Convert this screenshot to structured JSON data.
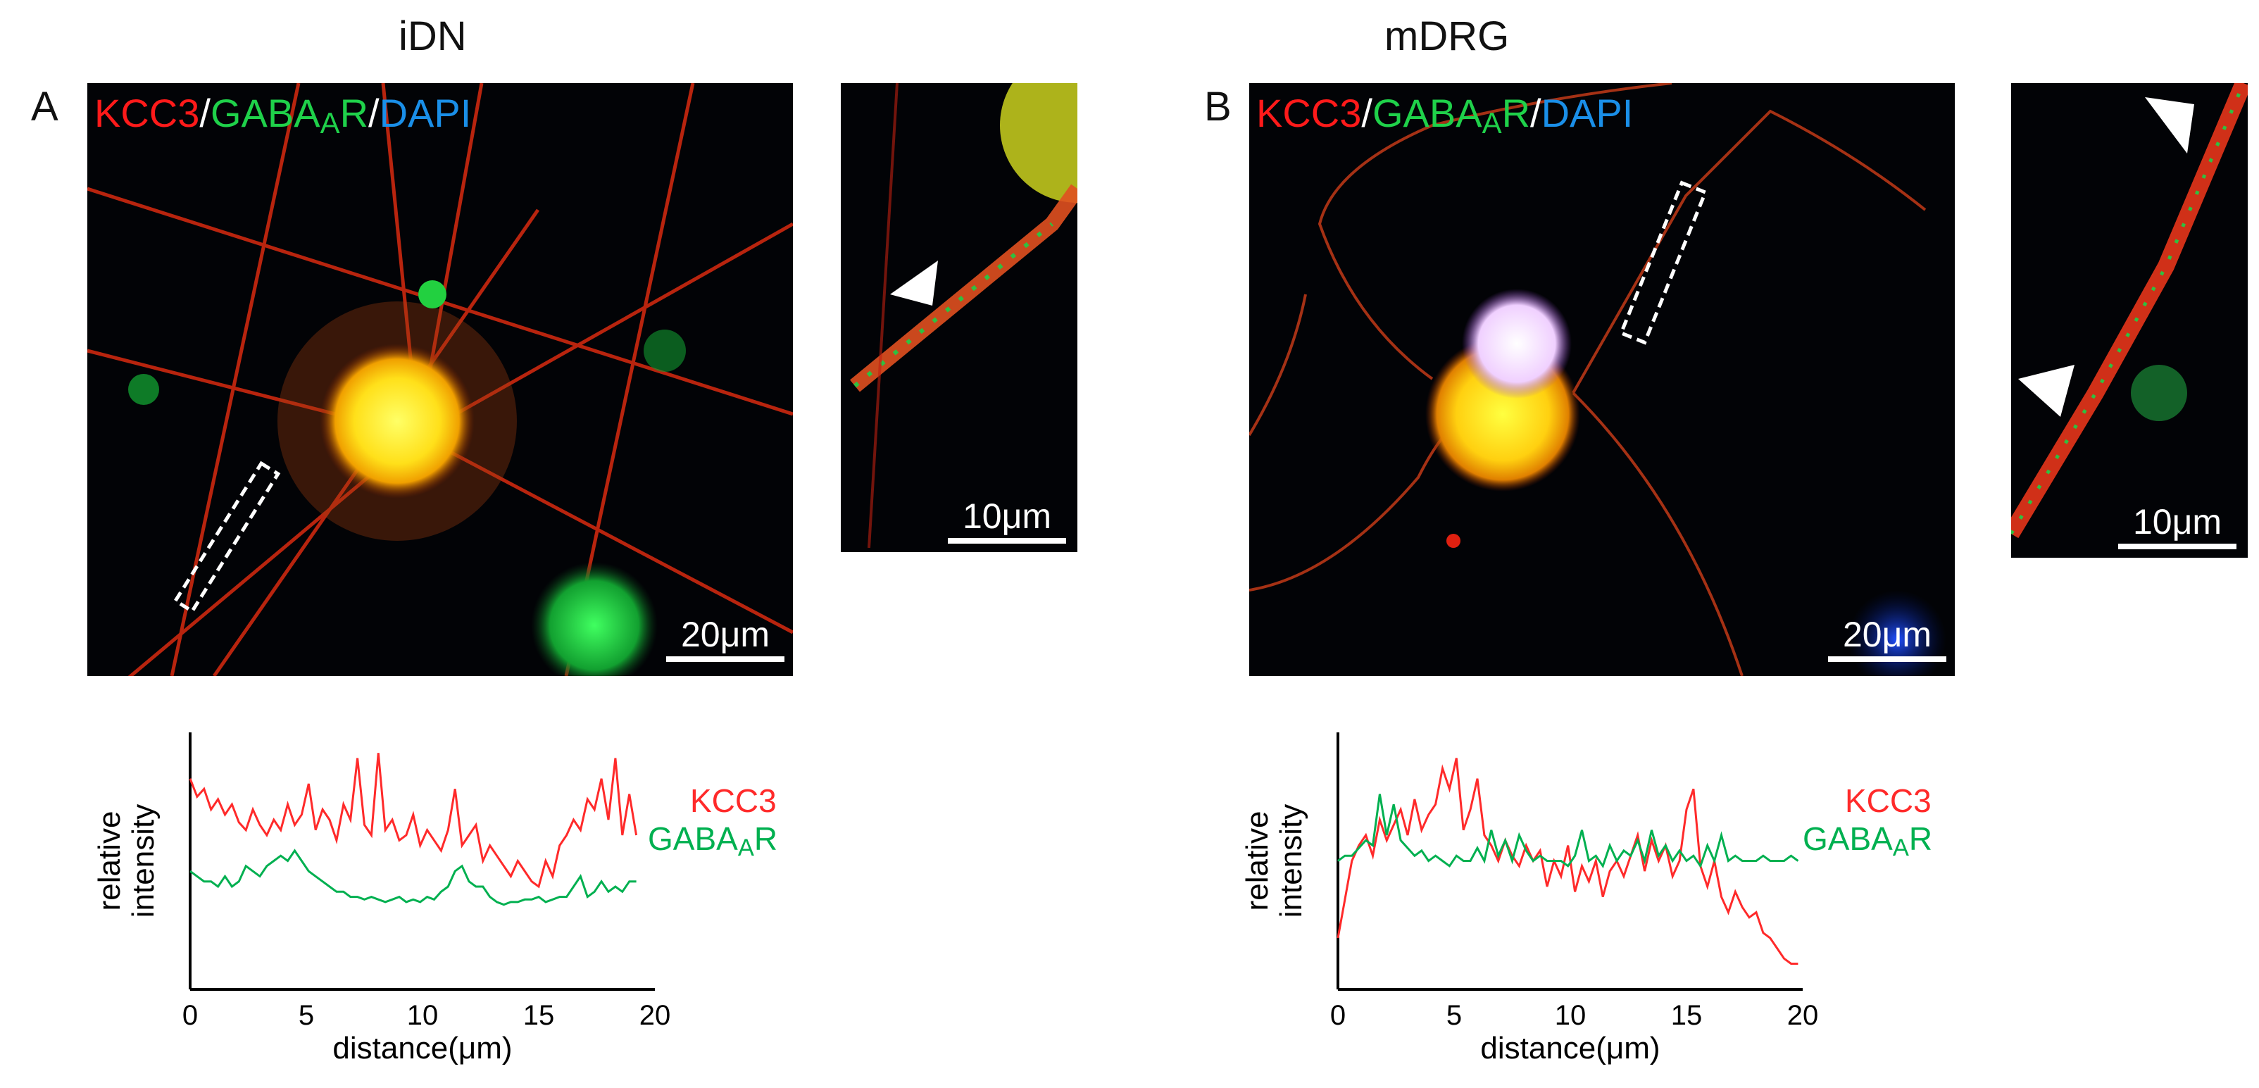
{
  "panels": [
    {
      "letter": "A",
      "title": "iDN",
      "stain": {
        "kcc3": "KCC3",
        "sep1": "/",
        "gaba": "GABA",
        "gaba_sub": "A",
        "gaba_end": "R",
        "sep2": "/",
        "dapi": "DAPI"
      },
      "main_scale": "20μm",
      "inset_scale": "10μm"
    },
    {
      "letter": "B",
      "title": "mDRG",
      "stain": {
        "kcc3": "KCC3",
        "sep1": "/",
        "gaba": "GABA",
        "gaba_sub": "A",
        "gaba_end": "R",
        "sep2": "/",
        "dapi": "DAPI"
      },
      "main_scale": "20μm",
      "inset_scale": "10μm"
    }
  ],
  "legend": {
    "kcc3": "KCC3",
    "gaba": "GABA",
    "gaba_sub": "A",
    "gaba_end": "R"
  },
  "colors": {
    "kcc3": "#ff2a2a",
    "gaba": "#00b050"
  },
  "chart_data": [
    {
      "type": "line",
      "xlabel": "distance(μm)",
      "ylabel": "relative intensity",
      "xlim": [
        0,
        20
      ],
      "xticks": [
        0,
        5,
        10,
        15,
        20
      ],
      "ylim": [
        0,
        1
      ],
      "series": [
        {
          "name": "KCC3",
          "color": "#ff2a2a",
          "x": [
            0,
            0.3,
            0.6,
            0.9,
            1.2,
            1.5,
            1.8,
            2.1,
            2.4,
            2.7,
            3,
            3.3,
            3.6,
            3.9,
            4.2,
            4.5,
            4.8,
            5.1,
            5.4,
            5.7,
            6,
            6.3,
            6.6,
            6.9,
            7.2,
            7.5,
            7.8,
            8.1,
            8.4,
            8.7,
            9,
            9.3,
            9.6,
            9.9,
            10.2,
            10.5,
            10.8,
            11.1,
            11.4,
            11.7,
            12,
            12.3,
            12.6,
            12.9,
            13.2,
            13.5,
            13.8,
            14.1,
            14.4,
            14.7,
            15,
            15.3,
            15.6,
            15.9,
            16.2,
            16.5,
            16.8,
            17.1,
            17.4,
            17.7,
            18,
            18.3,
            18.6,
            18.9,
            19.2
          ],
          "y": [
            0.82,
            0.75,
            0.78,
            0.7,
            0.74,
            0.68,
            0.72,
            0.65,
            0.62,
            0.7,
            0.64,
            0.6,
            0.66,
            0.62,
            0.72,
            0.64,
            0.68,
            0.8,
            0.62,
            0.7,
            0.66,
            0.58,
            0.72,
            0.66,
            0.9,
            0.64,
            0.6,
            0.92,
            0.62,
            0.66,
            0.58,
            0.6,
            0.68,
            0.56,
            0.62,
            0.58,
            0.54,
            0.62,
            0.78,
            0.56,
            0.6,
            0.64,
            0.5,
            0.56,
            0.52,
            0.48,
            0.44,
            0.5,
            0.46,
            0.42,
            0.4,
            0.5,
            0.44,
            0.56,
            0.6,
            0.66,
            0.62,
            0.74,
            0.7,
            0.82,
            0.66,
            0.9,
            0.6,
            0.76,
            0.6
          ]
        },
        {
          "name": "GABAAR",
          "color": "#00b050",
          "x": [
            0,
            0.3,
            0.6,
            0.9,
            1.2,
            1.5,
            1.8,
            2.1,
            2.4,
            2.7,
            3,
            3.3,
            3.6,
            3.9,
            4.2,
            4.5,
            4.8,
            5.1,
            5.4,
            5.7,
            6,
            6.3,
            6.6,
            6.9,
            7.2,
            7.5,
            7.8,
            8.1,
            8.4,
            8.7,
            9,
            9.3,
            9.6,
            9.9,
            10.2,
            10.5,
            10.8,
            11.1,
            11.4,
            11.7,
            12,
            12.3,
            12.6,
            12.9,
            13.2,
            13.5,
            13.8,
            14.1,
            14.4,
            14.7,
            15,
            15.3,
            15.6,
            15.9,
            16.2,
            16.5,
            16.8,
            17.1,
            17.4,
            17.7,
            18,
            18.3,
            18.6,
            18.9,
            19.2
          ],
          "y": [
            0.46,
            0.44,
            0.42,
            0.42,
            0.4,
            0.44,
            0.4,
            0.42,
            0.48,
            0.46,
            0.44,
            0.48,
            0.5,
            0.52,
            0.5,
            0.54,
            0.5,
            0.46,
            0.44,
            0.42,
            0.4,
            0.38,
            0.38,
            0.36,
            0.36,
            0.35,
            0.36,
            0.35,
            0.34,
            0.35,
            0.36,
            0.34,
            0.35,
            0.34,
            0.36,
            0.35,
            0.38,
            0.4,
            0.46,
            0.48,
            0.42,
            0.4,
            0.4,
            0.36,
            0.34,
            0.33,
            0.34,
            0.34,
            0.35,
            0.35,
            0.36,
            0.34,
            0.35,
            0.36,
            0.36,
            0.4,
            0.44,
            0.36,
            0.38,
            0.42,
            0.38,
            0.4,
            0.38,
            0.42,
            0.42
          ]
        }
      ]
    },
    {
      "type": "line",
      "xlabel": "distance(μm)",
      "ylabel": "relative intensity",
      "xlim": [
        0,
        20
      ],
      "xticks": [
        0,
        5,
        10,
        15,
        20
      ],
      "ylim": [
        0,
        1
      ],
      "series": [
        {
          "name": "KCC3",
          "color": "#ff2a2a",
          "x": [
            0,
            0.3,
            0.6,
            0.9,
            1.2,
            1.5,
            1.8,
            2.1,
            2.4,
            2.7,
            3,
            3.3,
            3.6,
            3.9,
            4.2,
            4.5,
            4.8,
            5.1,
            5.4,
            5.7,
            6,
            6.3,
            6.6,
            6.9,
            7.2,
            7.5,
            7.8,
            8.1,
            8.4,
            8.7,
            9,
            9.3,
            9.6,
            9.9,
            10.2,
            10.5,
            10.8,
            11.1,
            11.4,
            11.7,
            12,
            12.3,
            12.6,
            12.9,
            13.2,
            13.5,
            13.8,
            14.1,
            14.4,
            14.7,
            15,
            15.3,
            15.6,
            15.9,
            16.2,
            16.5,
            16.8,
            17.1,
            17.4,
            17.7,
            18,
            18.3,
            18.6,
            18.9,
            19.2,
            19.5,
            19.8
          ],
          "y": [
            0.2,
            0.35,
            0.5,
            0.56,
            0.6,
            0.52,
            0.66,
            0.58,
            0.64,
            0.7,
            0.6,
            0.74,
            0.62,
            0.68,
            0.72,
            0.86,
            0.78,
            0.9,
            0.62,
            0.7,
            0.82,
            0.6,
            0.56,
            0.5,
            0.58,
            0.52,
            0.48,
            0.56,
            0.5,
            0.54,
            0.4,
            0.5,
            0.44,
            0.56,
            0.38,
            0.48,
            0.42,
            0.5,
            0.36,
            0.46,
            0.5,
            0.44,
            0.52,
            0.6,
            0.46,
            0.58,
            0.5,
            0.56,
            0.44,
            0.5,
            0.7,
            0.78,
            0.48,
            0.4,
            0.5,
            0.36,
            0.3,
            0.38,
            0.32,
            0.28,
            0.3,
            0.22,
            0.2,
            0.16,
            0.12,
            0.1,
            0.1
          ]
        },
        {
          "name": "GABAAR",
          "color": "#00b050",
          "x": [
            0,
            0.3,
            0.6,
            0.9,
            1.2,
            1.5,
            1.8,
            2.1,
            2.4,
            2.7,
            3,
            3.3,
            3.6,
            3.9,
            4.2,
            4.5,
            4.8,
            5.1,
            5.4,
            5.7,
            6,
            6.3,
            6.6,
            6.9,
            7.2,
            7.5,
            7.8,
            8.1,
            8.4,
            8.7,
            9,
            9.3,
            9.6,
            9.9,
            10.2,
            10.5,
            10.8,
            11.1,
            11.4,
            11.7,
            12,
            12.3,
            12.6,
            12.9,
            13.2,
            13.5,
            13.8,
            14.1,
            14.4,
            14.7,
            15,
            15.3,
            15.6,
            15.9,
            16.2,
            16.5,
            16.8,
            17.1,
            17.4,
            17.7,
            18,
            18.3,
            18.6,
            18.9,
            19.2,
            19.5,
            19.8
          ],
          "y": [
            0.5,
            0.52,
            0.52,
            0.55,
            0.58,
            0.56,
            0.76,
            0.6,
            0.72,
            0.58,
            0.55,
            0.52,
            0.54,
            0.5,
            0.52,
            0.5,
            0.48,
            0.52,
            0.5,
            0.5,
            0.55,
            0.5,
            0.62,
            0.52,
            0.58,
            0.5,
            0.6,
            0.54,
            0.5,
            0.52,
            0.5,
            0.5,
            0.5,
            0.48,
            0.52,
            0.62,
            0.5,
            0.52,
            0.48,
            0.56,
            0.5,
            0.54,
            0.52,
            0.58,
            0.5,
            0.62,
            0.52,
            0.56,
            0.5,
            0.54,
            0.5,
            0.52,
            0.48,
            0.56,
            0.5,
            0.6,
            0.5,
            0.52,
            0.5,
            0.5,
            0.5,
            0.52,
            0.5,
            0.5,
            0.5,
            0.52,
            0.5
          ]
        }
      ]
    }
  ]
}
